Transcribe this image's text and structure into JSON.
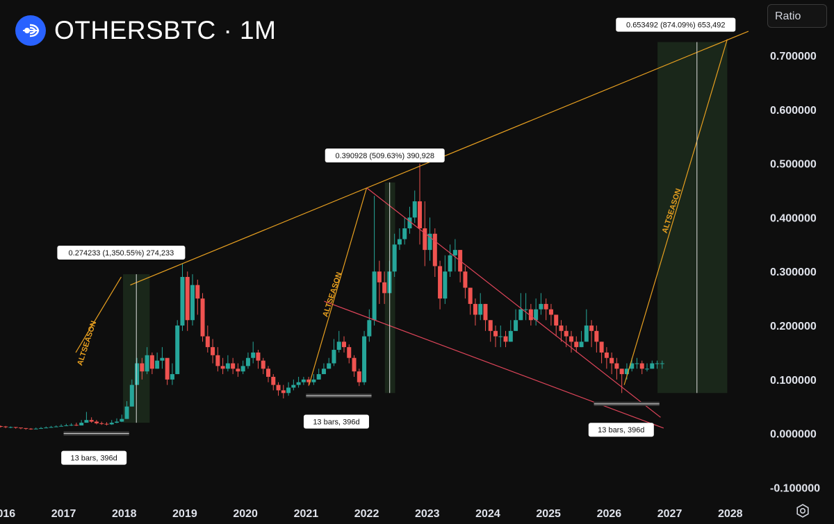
{
  "header": {
    "title": "OTHERSBTC · 1M",
    "scale_button": "Ratio"
  },
  "colors": {
    "background": "#0e0e0e",
    "up": "#26a69a",
    "down": "#ef5350",
    "trend_orange": "#e8a020",
    "trend_red": "#e0455a",
    "target_box": "#1c2b1c"
  },
  "chart_data": {
    "type": "candlestick",
    "timeframe": "1M",
    "ylim": [
      -0.12,
      0.79
    ],
    "xlim": [
      2015.95,
      2028.45
    ],
    "y_ticks": [
      "0.700000",
      "0.600000",
      "0.500000",
      "0.400000",
      "0.300000",
      "0.200000",
      "0.100000",
      "0.000000",
      "-0.100000"
    ],
    "y_tick_values": [
      0.7,
      0.6,
      0.5,
      0.4,
      0.3,
      0.2,
      0.1,
      0.0,
      -0.1
    ],
    "x_ticks": [
      "2016",
      "2017",
      "2018",
      "2019",
      "2020",
      "2021",
      "2022",
      "2023",
      "2024",
      "2025",
      "2026",
      "2027",
      "2028"
    ],
    "x_tick_values": [
      2016,
      2017,
      2018,
      2019,
      2020,
      2021,
      2022,
      2023,
      2024,
      2025,
      2026,
      2027,
      2028
    ],
    "series": [
      {
        "close": [
          0.013,
          0.012,
          0.012,
          0.011,
          0.01,
          0.009,
          0.008,
          0.009,
          0.01,
          0.011,
          0.012,
          0.013,
          0.014,
          0.015,
          0.016,
          0.015,
          0.02,
          0.025,
          0.022,
          0.019,
          0.018,
          0.017,
          0.02,
          0.022,
          0.027,
          0.05,
          0.09,
          0.13,
          0.115,
          0.145,
          0.12,
          0.135,
          0.14,
          0.1,
          0.11,
          0.2,
          0.29,
          0.21,
          0.275,
          0.25,
          0.18,
          0.16,
          0.145,
          0.125,
          0.12,
          0.13,
          0.12,
          0.115,
          0.125,
          0.14,
          0.15,
          0.135,
          0.12,
          0.105,
          0.09,
          0.08,
          0.075,
          0.085,
          0.09,
          0.095,
          0.1,
          0.095,
          0.1,
          0.11,
          0.12,
          0.13,
          0.155,
          0.17,
          0.16,
          0.14,
          0.115,
          0.095,
          0.18,
          0.21,
          0.3,
          0.28,
          0.26,
          0.3,
          0.35,
          0.36,
          0.38,
          0.4,
          0.43,
          0.38,
          0.34,
          0.37,
          0.31,
          0.25,
          0.3,
          0.33,
          0.34,
          0.3,
          0.27,
          0.24,
          0.22,
          0.24,
          0.21,
          0.19,
          0.18,
          0.18,
          0.17,
          0.19,
          0.21,
          0.23,
          0.23,
          0.21,
          0.23,
          0.24,
          0.23,
          0.22,
          0.2,
          0.19,
          0.18,
          0.17,
          0.16,
          0.17,
          0.2,
          0.19,
          0.17,
          0.15,
          0.14,
          0.13,
          0.12,
          0.11,
          0.12,
          0.13,
          0.13,
          0.12,
          0.12,
          0.13,
          0.13,
          0.13
        ],
        "high": [
          0.015,
          0.014,
          0.013,
          0.012,
          0.011,
          0.01,
          0.01,
          0.011,
          0.012,
          0.013,
          0.014,
          0.015,
          0.017,
          0.018,
          0.019,
          0.02,
          0.025,
          0.04,
          0.03,
          0.025,
          0.022,
          0.021,
          0.025,
          0.028,
          0.035,
          0.06,
          0.1,
          0.14,
          0.14,
          0.16,
          0.15,
          0.15,
          0.16,
          0.13,
          0.13,
          0.21,
          0.315,
          0.3,
          0.295,
          0.285,
          0.26,
          0.2,
          0.175,
          0.16,
          0.14,
          0.145,
          0.14,
          0.13,
          0.135,
          0.15,
          0.17,
          0.155,
          0.14,
          0.125,
          0.11,
          0.095,
          0.09,
          0.095,
          0.1,
          0.105,
          0.105,
          0.105,
          0.11,
          0.12,
          0.13,
          0.14,
          0.175,
          0.19,
          0.18,
          0.165,
          0.145,
          0.12,
          0.19,
          0.23,
          0.44,
          0.32,
          0.3,
          0.32,
          0.37,
          0.38,
          0.4,
          0.42,
          0.45,
          0.5,
          0.43,
          0.4,
          0.38,
          0.32,
          0.33,
          0.35,
          0.36,
          0.34,
          0.31,
          0.27,
          0.25,
          0.26,
          0.24,
          0.21,
          0.2,
          0.2,
          0.19,
          0.21,
          0.23,
          0.26,
          0.26,
          0.24,
          0.25,
          0.26,
          0.25,
          0.24,
          0.22,
          0.21,
          0.2,
          0.19,
          0.18,
          0.19,
          0.23,
          0.21,
          0.2,
          0.17,
          0.16,
          0.15,
          0.14,
          0.12,
          0.13,
          0.14,
          0.14,
          0.135,
          0.13,
          0.135,
          0.135,
          0.135
        ],
        "low": [
          0.011,
          0.01,
          0.01,
          0.009,
          0.008,
          0.007,
          0.007,
          0.008,
          0.009,
          0.01,
          0.011,
          0.012,
          0.013,
          0.014,
          0.014,
          0.014,
          0.015,
          0.02,
          0.02,
          0.017,
          0.016,
          0.015,
          0.016,
          0.019,
          0.021,
          0.027,
          0.05,
          0.09,
          0.1,
          0.11,
          0.11,
          0.12,
          0.12,
          0.09,
          0.09,
          0.11,
          0.19,
          0.19,
          0.2,
          0.22,
          0.17,
          0.15,
          0.13,
          0.115,
          0.11,
          0.115,
          0.11,
          0.105,
          0.11,
          0.12,
          0.13,
          0.12,
          0.11,
          0.095,
          0.08,
          0.07,
          0.065,
          0.07,
          0.08,
          0.085,
          0.09,
          0.088,
          0.09,
          0.1,
          0.11,
          0.12,
          0.125,
          0.15,
          0.15,
          0.13,
          0.105,
          0.088,
          0.09,
          0.17,
          0.2,
          0.24,
          0.24,
          0.26,
          0.29,
          0.34,
          0.35,
          0.37,
          0.39,
          0.35,
          0.31,
          0.32,
          0.29,
          0.23,
          0.24,
          0.29,
          0.3,
          0.28,
          0.25,
          0.22,
          0.2,
          0.21,
          0.19,
          0.17,
          0.16,
          0.16,
          0.16,
          0.17,
          0.19,
          0.21,
          0.21,
          0.2,
          0.2,
          0.22,
          0.21,
          0.2,
          0.18,
          0.17,
          0.16,
          0.15,
          0.15,
          0.16,
          0.17,
          0.16,
          0.15,
          0.13,
          0.12,
          0.11,
          0.1,
          0.075,
          0.1,
          0.115,
          0.12,
          0.11,
          0.115,
          0.12,
          0.12,
          0.12
        ]
      }
    ],
    "annotations": [
      {
        "label": "0.274233 (1,350.55%) 274,233"
      },
      {
        "label": "0.390928 (509.63%) 390,928"
      },
      {
        "label": "0.653492 (874.09%) 653,492"
      },
      {
        "label": "13 bars, 396d"
      },
      {
        "label": "13 bars, 396d"
      },
      {
        "label": "13 bars, 396d"
      },
      {
        "label": "ALTSEASON"
      },
      {
        "label": "ALTSEASON"
      },
      {
        "label": "ALTSEASON"
      }
    ]
  }
}
